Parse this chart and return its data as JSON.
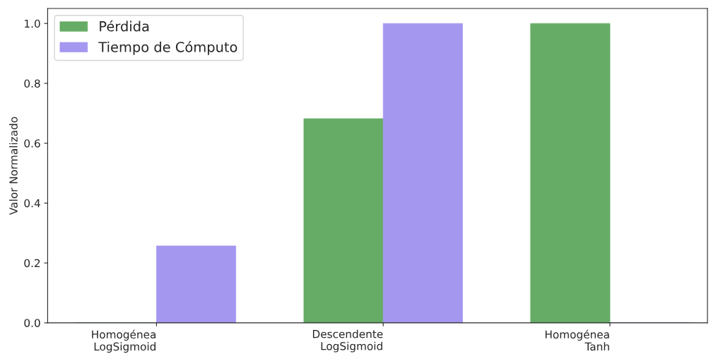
{
  "chart_data": {
    "type": "bar",
    "ylabel": "Valor Normalizado",
    "categories": [
      "Homogénea\nLogSigmoid",
      "Descendente\nLogSigmoid",
      "Homogénea\nTanh"
    ],
    "series": [
      {
        "name": "Pérdida",
        "color": "#66ac66",
        "values": [
          0,
          0.682,
          1.0
        ]
      },
      {
        "name": "Tiempo de Cómputo",
        "color": "#a397f0",
        "values": [
          0.257,
          1.0,
          0
        ]
      }
    ],
    "ylim": [
      0,
      1.05
    ],
    "yticks": [
      {
        "value": 0,
        "label": "0.0"
      },
      {
        "value": 0.2,
        "label": "0.2"
      },
      {
        "value": 0.4,
        "label": "0.4"
      },
      {
        "value": 0.6,
        "label": "0.6"
      },
      {
        "value": 0.8,
        "label": "0.8"
      },
      {
        "value": 1.0,
        "label": "1.0"
      }
    ],
    "grid": false,
    "legend": "top left"
  }
}
